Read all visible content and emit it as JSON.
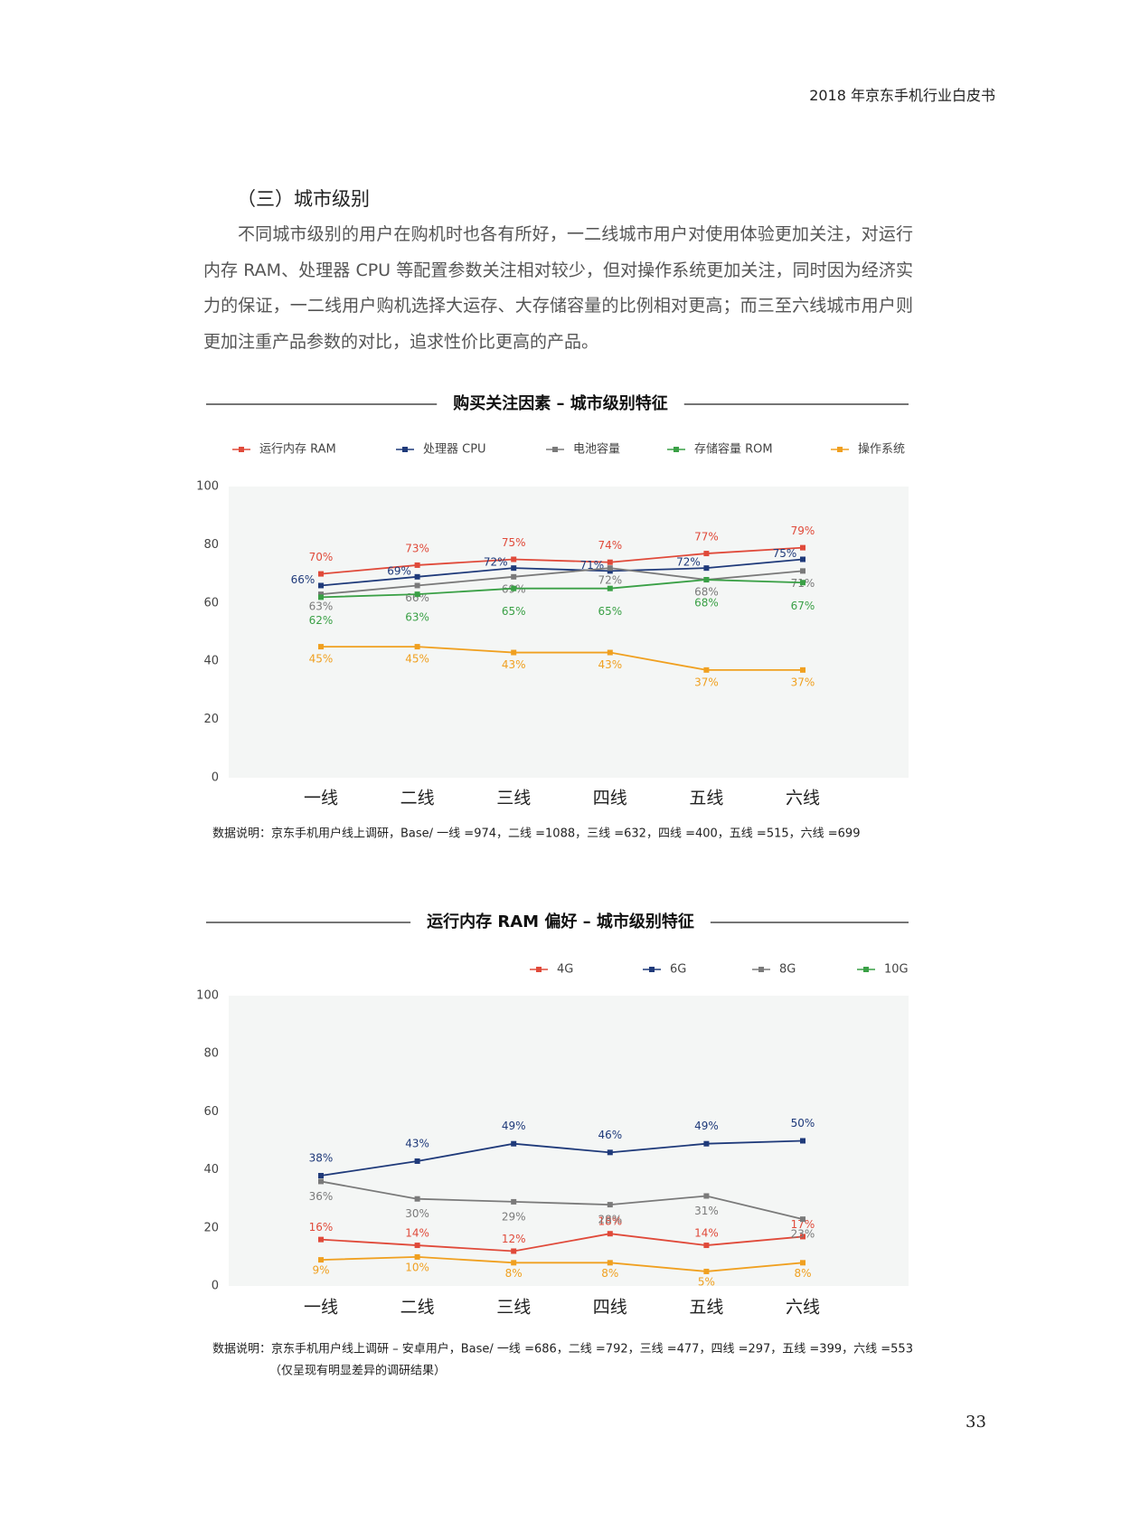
{
  "header": "2018 年京东手机行业白皮书",
  "section_title": "（三）城市级别",
  "paragraph": "不同城市级别的用户在购机时也各有所好，一二线城市用户对使用体验更加关注，对运行内存 RAM、处理器 CPU 等配置参数关注相对较少，但对操作系统更加关注，同时因为经济实力的保证，一二线用户购机选择大运存、大存储容量的比例相对更高；而三至六线城市用户则更加注重产品参数的对比，追求性价比更高的产品。",
  "chart_data": [
    {
      "type": "line",
      "title": "购买关注因素 – 城市级别特征",
      "categories": [
        "一线",
        "二线",
        "三线",
        "四线",
        "五线",
        "六线"
      ],
      "series": [
        {
          "name": "运行内存 RAM",
          "color": "#e04a3a",
          "values": [
            70,
            73,
            75,
            74,
            77,
            79
          ],
          "value_labels": [
            "70%",
            "73%",
            "75%",
            "74%",
            "77%",
            "79%"
          ]
        },
        {
          "name": "处理器 CPU",
          "color": "#1f3a7a",
          "values": [
            66,
            69,
            72,
            71,
            72,
            75
          ],
          "value_labels": [
            "66%",
            "69%",
            "72%",
            "71%",
            "72%",
            "75%"
          ]
        },
        {
          "name": "电池容量",
          "color": "#7a7a7a",
          "values": [
            63,
            66,
            69,
            72,
            68,
            71
          ],
          "value_labels": [
            "63%",
            "66%",
            "69%",
            "72%",
            "68%",
            "71%"
          ]
        },
        {
          "name": "存储容量 ROM",
          "color": "#3aa046",
          "values": [
            62,
            63,
            65,
            65,
            68,
            67
          ],
          "value_labels": [
            "62%",
            "63%",
            "65%",
            "65%",
            "68%",
            "67%"
          ]
        },
        {
          "name": "操作系统",
          "color": "#f0a020",
          "values": [
            45,
            45,
            43,
            43,
            37,
            37
          ],
          "value_labels": [
            "45%",
            "45%",
            "43%",
            "43%",
            "37%",
            "37%"
          ]
        }
      ],
      "ylim": [
        0,
        100
      ],
      "yticks": [
        0,
        20,
        40,
        60,
        80,
        100
      ],
      "notes": [
        "数据说明：京东手机用户线上调研，Base/ 一线 =974，二线 =1088，三线 =632，四线 =400，五线 =515，六线 =699"
      ]
    },
    {
      "type": "line",
      "title": "运行内存 RAM 偏好 – 城市级别特征",
      "categories": [
        "一线",
        "二线",
        "三线",
        "四线",
        "五线",
        "六线"
      ],
      "series": [
        {
          "name": "4G",
          "color": "#e04a3a",
          "values": [
            16,
            14,
            12,
            18,
            14,
            17
          ],
          "value_labels": [
            "16%",
            "14%",
            "12%",
            "18%",
            "14%",
            "17%"
          ]
        },
        {
          "name": "6G",
          "color": "#1f3a7a",
          "values": [
            38,
            43,
            49,
            46,
            49,
            50
          ],
          "value_labels": [
            "38%",
            "43%",
            "49%",
            "46%",
            "49%",
            "50%"
          ]
        },
        {
          "name": "8G",
          "color": "#7a7a7a",
          "values": [
            36,
            30,
            29,
            28,
            31,
            23
          ],
          "value_labels": [
            "36%",
            "30%",
            "29%",
            "28%",
            "31%",
            "23%"
          ]
        },
        {
          "name": "10G",
          "color": "#f0a020",
          "legend_color": "#3aa046",
          "values": [
            9,
            10,
            8,
            8,
            5,
            8
          ],
          "value_labels": [
            "9%",
            "10%",
            "8%",
            "8%",
            "5%",
            "8%"
          ]
        }
      ],
      "ylim": [
        0,
        100
      ],
      "yticks": [
        0,
        20,
        40,
        60,
        80,
        100
      ],
      "notes": [
        "数据说明：京东手机用户线上调研 – 安卓用户，Base/ 一线 =686，二线 =792，三线 =477，四线 =297，五线 =399，六线 =553",
        "（仅呈现有明显差异的调研结果）"
      ]
    }
  ],
  "page_number": "33"
}
